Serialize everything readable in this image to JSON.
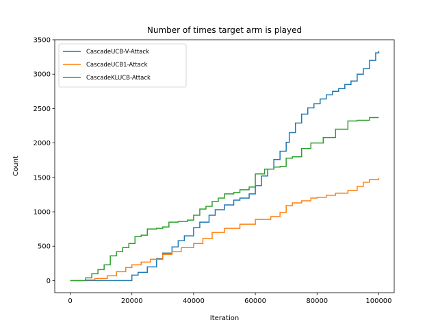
{
  "chart_data": {
    "type": "line",
    "title": "Number of times target arm is played",
    "xlabel": "Iteration",
    "ylabel": "Count",
    "xlim": [
      -5000,
      105000
    ],
    "ylim": [
      -175,
      3500
    ],
    "xticks": [
      0,
      20000,
      40000,
      60000,
      80000,
      100000
    ],
    "xtick_labels": [
      "0",
      "20000",
      "40000",
      "60000",
      "80000",
      "100000"
    ],
    "yticks": [
      0,
      500,
      1000,
      1500,
      2000,
      2500,
      3000,
      3500
    ],
    "ytick_labels": [
      "0",
      "500",
      "1000",
      "1500",
      "2000",
      "2500",
      "3000",
      "3500"
    ],
    "grid": false,
    "legend_position": "top-left",
    "series": [
      {
        "name": "CascadeUCB-V-Attack",
        "color": "#1f77b4",
        "x": [
          0,
          5000,
          10000,
          15000,
          18000,
          20000,
          22000,
          25000,
          28000,
          30000,
          33000,
          35000,
          37000,
          40000,
          42000,
          45000,
          47000,
          50000,
          53000,
          55000,
          58000,
          60000,
          62000,
          64000,
          66000,
          68000,
          70000,
          71000,
          73000,
          75000,
          77000,
          79000,
          81000,
          83000,
          85000,
          87000,
          89000,
          91000,
          93000,
          95000,
          97000,
          99000,
          100000
        ],
        "y": [
          0,
          0,
          0,
          0,
          0,
          80,
          120,
          200,
          320,
          400,
          490,
          580,
          650,
          770,
          850,
          950,
          1030,
          1100,
          1170,
          1200,
          1260,
          1380,
          1520,
          1620,
          1760,
          1880,
          2010,
          2150,
          2290,
          2420,
          2510,
          2570,
          2640,
          2700,
          2750,
          2790,
          2850,
          2900,
          3000,
          3080,
          3200,
          3310,
          3340
        ]
      },
      {
        "name": "CascadeUCB1-Attack",
        "color": "#ff7f0e",
        "x": [
          0,
          3000,
          5000,
          8000,
          12000,
          15000,
          18000,
          20000,
          23000,
          26000,
          30000,
          33000,
          36000,
          40000,
          43000,
          46000,
          50000,
          55000,
          60000,
          65000,
          68000,
          70000,
          72000,
          75000,
          78000,
          80000,
          83000,
          86000,
          90000,
          93000,
          95000,
          97000,
          100000
        ],
        "y": [
          0,
          0,
          10,
          30,
          70,
          130,
          190,
          230,
          270,
          310,
          380,
          420,
          480,
          540,
          610,
          700,
          760,
          820,
          890,
          930,
          990,
          1090,
          1130,
          1160,
          1200,
          1210,
          1240,
          1270,
          1310,
          1370,
          1430,
          1470,
          1490
        ]
      },
      {
        "name": "CascadeKLUCB-Attack",
        "color": "#2ca02c",
        "x": [
          0,
          3000,
          5000,
          7000,
          9000,
          11000,
          13000,
          15000,
          17000,
          19000,
          21000,
          23000,
          25000,
          28000,
          30000,
          32000,
          35000,
          38000,
          40000,
          42000,
          44000,
          46000,
          48000,
          50000,
          53000,
          55000,
          58000,
          60000,
          63000,
          66000,
          68000,
          70000,
          72000,
          75000,
          78000,
          82000,
          86000,
          90000,
          93000,
          95000,
          97000,
          100000
        ],
        "y": [
          0,
          0,
          40,
          100,
          160,
          230,
          360,
          420,
          480,
          540,
          640,
          660,
          750,
          760,
          780,
          850,
          860,
          880,
          950,
          1040,
          1080,
          1150,
          1200,
          1260,
          1280,
          1320,
          1360,
          1550,
          1620,
          1650,
          1660,
          1780,
          1800,
          1920,
          2000,
          2080,
          2200,
          2320,
          2330,
          2330,
          2370,
          2370
        ]
      }
    ]
  }
}
